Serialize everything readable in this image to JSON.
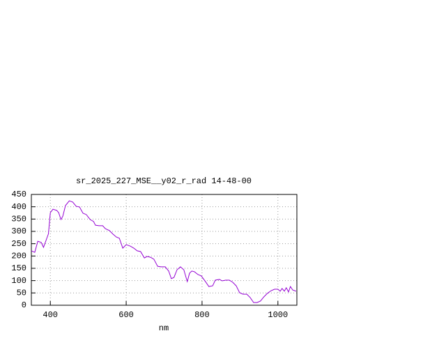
{
  "chart_data": {
    "type": "line",
    "title": "sr_2025_227_MSE__y02_r_rad 14-48-00",
    "xlabel": "nm",
    "xlim": [
      350,
      1050
    ],
    "ylim": [
      0,
      450
    ],
    "xticks": [
      400,
      600,
      800,
      1000
    ],
    "yticks": [
      0,
      50,
      100,
      150,
      200,
      250,
      300,
      350,
      400,
      450
    ],
    "grid": true,
    "x": [
      350,
      359,
      367,
      376,
      382,
      395,
      400,
      407,
      417,
      422,
      428,
      433,
      440,
      450,
      459,
      468,
      477,
      486,
      495,
      505,
      514,
      519,
      528,
      538,
      545,
      556,
      565,
      574,
      582,
      591,
      600,
      611,
      620,
      629,
      638,
      648,
      655,
      664,
      673,
      683,
      692,
      703,
      712,
      719,
      726,
      734,
      743,
      752,
      761,
      767,
      773,
      780,
      789,
      798,
      809,
      818,
      828,
      835,
      846,
      853,
      862,
      872,
      881,
      890,
      899,
      908,
      918,
      927,
      936,
      945,
      954,
      963,
      972,
      982,
      991,
      1000,
      1006,
      1011,
      1017,
      1022,
      1028,
      1033,
      1039,
      1048
    ],
    "series": [
      {
        "color": "#9400d3",
        "values": [
          221,
          215,
          260,
          255,
          235,
          290,
          376,
          390,
          385,
          376,
          348,
          362,
          405,
          424,
          419,
          402,
          399,
          374,
          368,
          348,
          340,
          325,
          323,
          323,
          311,
          303,
          289,
          277,
          272,
          232,
          246,
          240,
          232,
          221,
          218,
          192,
          198,
          195,
          187,
          158,
          156,
          156,
          139,
          108,
          113,
          144,
          156,
          144,
          96,
          130,
          139,
          136,
          125,
          119,
          96,
          76,
          79,
          102,
          105,
          99,
          102,
          102,
          93,
          79,
          51,
          45,
          45,
          31,
          11,
          11,
          17,
          34,
          48,
          59,
          65,
          65,
          57,
          68,
          57,
          71,
          54,
          76,
          62,
          57
        ]
      }
    ]
  }
}
